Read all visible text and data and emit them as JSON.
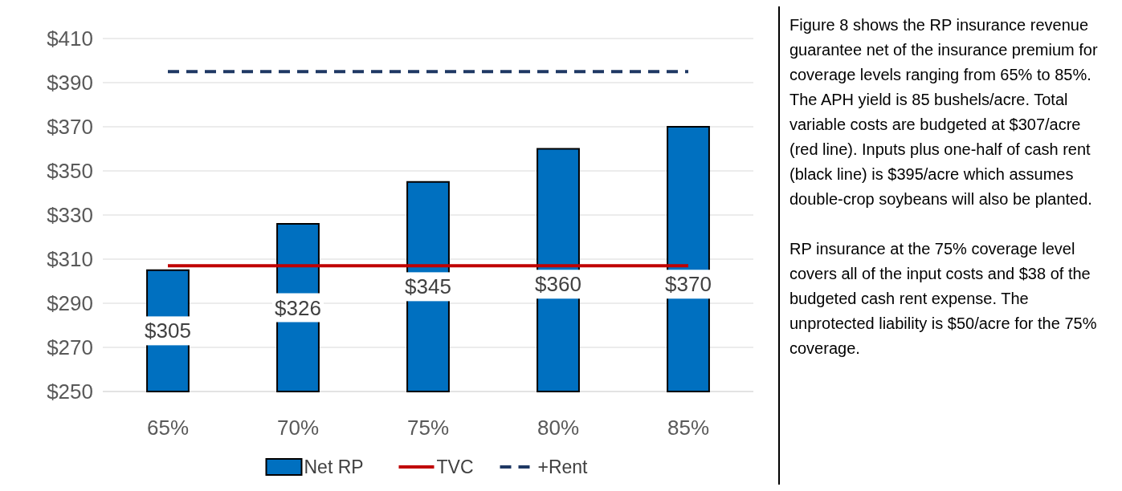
{
  "chart_data": {
    "type": "bar",
    "categories": [
      "65%",
      "70%",
      "75%",
      "80%",
      "85%"
    ],
    "series": [
      {
        "name": "Net RP",
        "color": "#0070c0",
        "values": [
          305,
          326,
          345,
          360,
          370
        ],
        "value_labels": [
          "$305",
          "$326",
          "$345",
          "$360",
          "$370"
        ]
      },
      {
        "name": "TVC",
        "type": "line",
        "color": "#c00000",
        "values": [
          307,
          307,
          307,
          307,
          307
        ],
        "line_style": "solid"
      },
      {
        "name": "+Rent",
        "type": "line",
        "color": "#1f3864",
        "values": [
          395,
          395,
          395,
          395,
          395
        ],
        "line_style": "dashed"
      }
    ],
    "ylim": [
      250,
      410
    ],
    "yticks": [
      {
        "value": 250,
        "label": "$250"
      },
      {
        "value": 270,
        "label": "$270"
      },
      {
        "value": 290,
        "label": "$290"
      },
      {
        "value": 310,
        "label": "$310"
      },
      {
        "value": 330,
        "label": "$330"
      },
      {
        "value": 350,
        "label": "$350"
      },
      {
        "value": 370,
        "label": "$370"
      },
      {
        "value": 390,
        "label": "$390"
      },
      {
        "value": 410,
        "label": "$410"
      }
    ],
    "grid": "y",
    "legend": "bottom",
    "annotations": [
      "Figure 8 shows the RP insurance revenue guarantee net of the insurance premium for coverage levels ranging from 65% to 85%. The APH yield is 85 bushels/acre. Total variable costs are budgeted at $307/acre (red line). Inputs plus one-half of cash rent (black line) is $395/acre which assumes double-crop soybeans will also be planted.",
      "RP insurance at the 75% coverage level covers all of the input costs and $38 of the budgeted cash rent expense. The unprotected liability is $50/acre for the 75% coverage."
    ]
  }
}
